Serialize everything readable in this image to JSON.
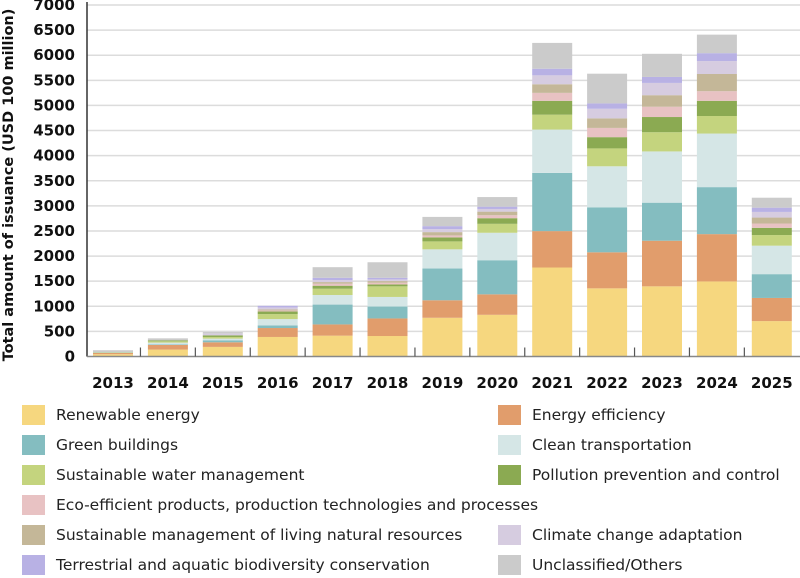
{
  "chart_data": {
    "type": "bar",
    "stacked": true,
    "ylabel": "Total amount of issuance (USD 100 million)",
    "ylim": [
      0,
      7000
    ],
    "yticks": [
      0,
      500,
      1000,
      1500,
      2000,
      2500,
      3000,
      3500,
      4000,
      4500,
      5000,
      5500,
      6000,
      6500,
      7000
    ],
    "grid": true,
    "legend_position": "bottom",
    "categories": [
      "2013",
      "2014",
      "2015",
      "2016",
      "2017",
      "2018",
      "2019",
      "2020",
      "2021",
      "2022",
      "2023",
      "2024",
      "2025"
    ],
    "series": [
      {
        "name": "Renewable energy",
        "color": "#f6d77f",
        "values": [
          45,
          138,
          191,
          389,
          415,
          408,
          771,
          830,
          1772,
          1357,
          1397,
          1495,
          705
        ]
      },
      {
        "name": "Energy efficiency",
        "color": "#e19d6c",
        "values": [
          25,
          92,
          92,
          178,
          224,
          350,
          349,
          408,
          725,
          718,
          909,
          942,
          461
        ]
      },
      {
        "name": "Green buildings",
        "color": "#84bdc0",
        "values": [
          5,
          13,
          40,
          53,
          395,
          237,
          632,
          679,
          1159,
          896,
          757,
          936,
          474
        ]
      },
      {
        "name": "Clean transportation",
        "color": "#d5e6e6",
        "values": [
          5,
          33,
          33,
          125,
          191,
          191,
          382,
          547,
          863,
          817,
          1021,
          1067,
          567
        ]
      },
      {
        "name": "Sustainable water management",
        "color": "#c4d47e",
        "values": [
          5,
          26,
          33,
          99,
          125,
          211,
          158,
          178,
          297,
          356,
          382,
          349,
          211
        ]
      },
      {
        "name": "Pollution prevention and control",
        "color": "#8baa52",
        "values": [
          5,
          20,
          33,
          53,
          60,
          39,
          80,
          112,
          276,
          224,
          303,
          303,
          145
        ]
      },
      {
        "name": "Eco-efficient products, production technologies and processes",
        "color": "#e8c2c3",
        "values": [
          0,
          0,
          0,
          20,
          39,
          33,
          39,
          59,
          158,
          184,
          205,
          191,
          85
        ]
      },
      {
        "name": "Sustainable management of living natural resources",
        "color": "#c4b798",
        "values": [
          0,
          0,
          0,
          20,
          33,
          33,
          66,
          72,
          172,
          191,
          230,
          343,
          119
        ]
      },
      {
        "name": "Climate change adaptation",
        "color": "#d6cce0",
        "values": [
          0,
          0,
          33,
          40,
          40,
          33,
          59,
          53,
          177,
          191,
          244,
          257,
          112
        ]
      },
      {
        "name": "Terrestrial and aquatic biodiversity conservation",
        "color": "#b8b1e4",
        "values": [
          0,
          0,
          0,
          33,
          46,
          33,
          60,
          46,
          132,
          106,
          119,
          158,
          85
        ]
      },
      {
        "name": "Unclassified/Others",
        "color": "#cbcbcb",
        "values": [
          35,
          40,
          33,
          0,
          211,
          309,
          184,
          191,
          514,
          592,
          461,
          369,
          198
        ]
      }
    ]
  }
}
